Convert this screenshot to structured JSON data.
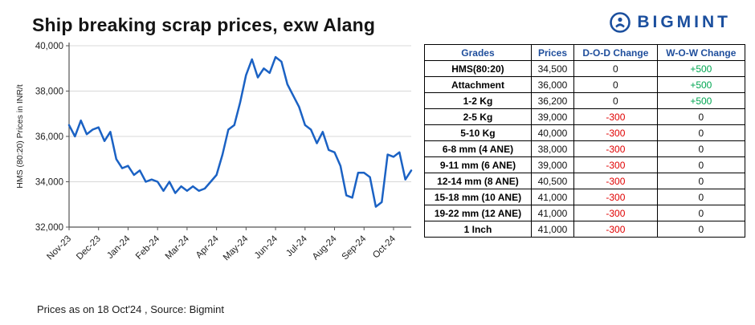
{
  "header": {
    "title": "Ship breaking scrap prices, exw Alang",
    "brand": "BIGMINT"
  },
  "colors": {
    "line": "#1b62c4",
    "brand_blue": "#1b4f9e",
    "negative": "#e00000",
    "positive": "#00a651",
    "grid": "#d8d8d8",
    "axis": "#555555"
  },
  "chart_data": {
    "type": "line",
    "title": "Ship breaking scrap prices, exw Alang",
    "ylabel": "HMS (80:20) Prices in INR/t",
    "ylim": [
      32000,
      40000
    ],
    "ytick_step": 2000,
    "grid": true,
    "legend": false,
    "x_labels": [
      "Nov-23",
      "Dec-23",
      "Jan-24",
      "Feb-24",
      "Mar-24",
      "Apr-24",
      "May-24",
      "Jun-24",
      "Jul-24",
      "Aug-24",
      "Sep-24",
      "Oct-24"
    ],
    "points_per_month": 5,
    "values": [
      36500,
      36000,
      36700,
      36100,
      36300,
      36400,
      35800,
      36200,
      35000,
      34600,
      34700,
      34300,
      34500,
      34000,
      34100,
      34000,
      33600,
      34000,
      33500,
      33800,
      33600,
      33800,
      33600,
      33700,
      34000,
      34300,
      35200,
      36300,
      36500,
      37500,
      38700,
      39400,
      38600,
      39000,
      38800,
      39500,
      39300,
      38300,
      37800,
      37300,
      36500,
      36300,
      35700,
      36200,
      35400,
      35300,
      34700,
      33400,
      33300,
      34400,
      34400,
      34200,
      32900,
      33100,
      35200,
      35100,
      35300,
      34100,
      34500
    ]
  },
  "table": {
    "headers": [
      "Grades",
      "Prices",
      "D-O-D Change",
      "W-O-W Change"
    ],
    "rows": [
      {
        "grade": "HMS(80:20)",
        "price": "34,500",
        "dod": "0",
        "wow": "+500"
      },
      {
        "grade": "Attachment",
        "price": "36,000",
        "dod": "0",
        "wow": "+500"
      },
      {
        "grade": "1-2 Kg",
        "price": "36,200",
        "dod": "0",
        "wow": "+500"
      },
      {
        "grade": "2-5 Kg",
        "price": "39,000",
        "dod": "-300",
        "wow": "0"
      },
      {
        "grade": "5-10 Kg",
        "price": "40,000",
        "dod": "-300",
        "wow": "0"
      },
      {
        "grade": "6-8 mm (4 ANE)",
        "price": "38,000",
        "dod": "-300",
        "wow": "0"
      },
      {
        "grade": "9-11 mm (6 ANE)",
        "price": "39,000",
        "dod": "-300",
        "wow": "0"
      },
      {
        "grade": "12-14 mm (8 ANE)",
        "price": "40,500",
        "dod": "-300",
        "wow": "0"
      },
      {
        "grade": "15-18 mm (10 ANE)",
        "price": "41,000",
        "dod": "-300",
        "wow": "0"
      },
      {
        "grade": "19-22 mm (12 ANE)",
        "price": "41,000",
        "dod": "-300",
        "wow": "0"
      },
      {
        "grade": "1 Inch",
        "price": "41,000",
        "dod": "-300",
        "wow": "0"
      }
    ]
  },
  "footer": {
    "note": "Prices as on 18 Oct'24 , Source: Bigmint"
  }
}
